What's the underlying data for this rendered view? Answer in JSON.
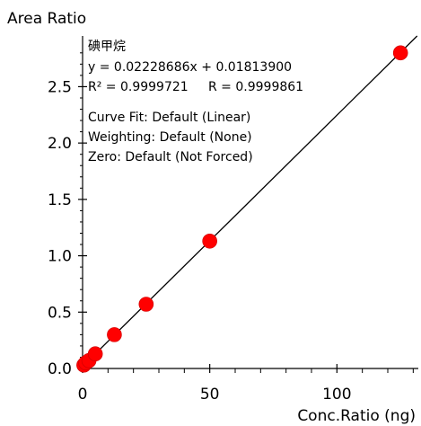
{
  "chart_data": {
    "type": "scatter",
    "ylabel": "Area Ratio",
    "xlabel": "Conc.Ratio (ng)",
    "xlim": [
      0,
      132
    ],
    "ylim": [
      0,
      2.95
    ],
    "x_ticks": [
      0,
      50,
      100
    ],
    "y_ticks": [
      0.0,
      0.5,
      1.0,
      1.5,
      2.0,
      2.5
    ],
    "x_tick_labels": [
      "0",
      "50",
      "100"
    ],
    "y_tick_labels": [
      "0.0",
      "0.5",
      "1.0",
      "1.5",
      "2.0",
      "2.5"
    ],
    "grid": false,
    "marker_color": "#ff0000",
    "line_color": "#000000",
    "fit": {
      "slope": 0.02228686,
      "intercept": 0.018139
    },
    "points": [
      {
        "x": 0.5,
        "y": 0.03
      },
      {
        "x": 1.25,
        "y": 0.05
      },
      {
        "x": 2.5,
        "y": 0.07
      },
      {
        "x": 5,
        "y": 0.13
      },
      {
        "x": 12.5,
        "y": 0.3
      },
      {
        "x": 25,
        "y": 0.57
      },
      {
        "x": 50,
        "y": 1.13
      },
      {
        "x": 125,
        "y": 2.8
      }
    ],
    "annotations": {
      "compound": "碘甲烷",
      "equation": "y = 0.02228686x + 0.01813900",
      "r2": "R² = 0.9999721",
      "r": "R = 0.9999861",
      "curve_fit": "Curve Fit: Default (Linear)",
      "weighting": "Weighting: Default (None)",
      "zero": "Zero: Default (Not Forced)"
    }
  }
}
